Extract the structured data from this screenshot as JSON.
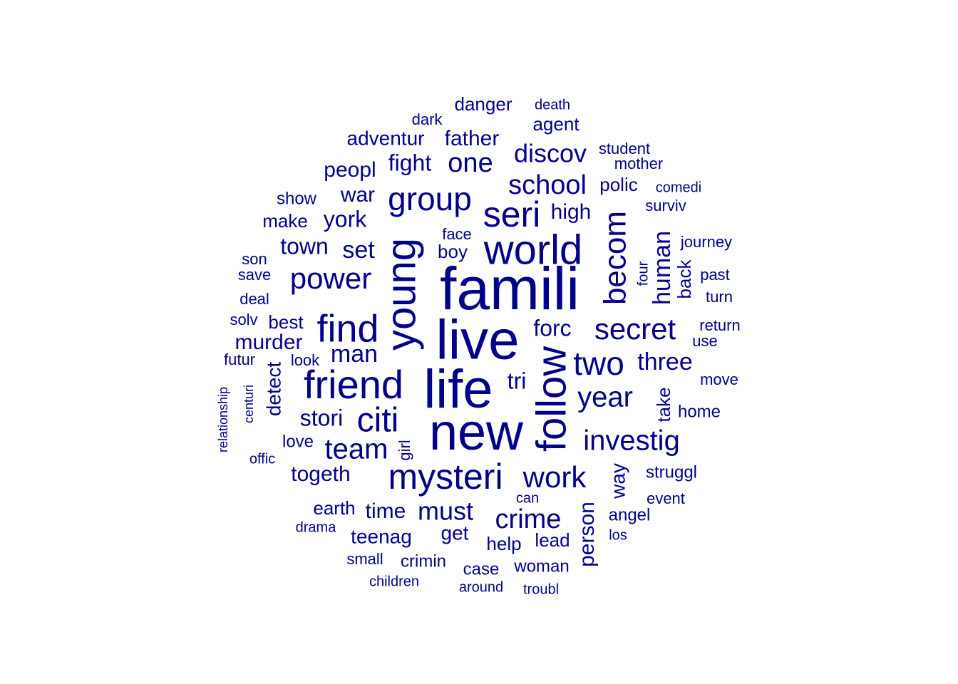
{
  "colors": {
    "background": "#ffffff",
    "word": "#00008b"
  },
  "words": [
    {
      "text": "famili",
      "weight": 84
    },
    {
      "text": "live",
      "weight": 78
    },
    {
      "text": "life",
      "weight": 76
    },
    {
      "text": "new",
      "weight": 72
    },
    {
      "text": "young",
      "weight": 58
    },
    {
      "text": "follow",
      "weight": 58
    },
    {
      "text": "world",
      "weight": 58
    },
    {
      "text": "friend",
      "weight": 56
    },
    {
      "text": "find",
      "weight": 54
    },
    {
      "text": "seri",
      "weight": 50
    },
    {
      "text": "mysteri",
      "weight": 50
    },
    {
      "text": "citi",
      "weight": 48
    },
    {
      "text": "group",
      "weight": 46
    },
    {
      "text": "two",
      "weight": 46
    },
    {
      "text": "becom",
      "weight": 44
    },
    {
      "text": "secret",
      "weight": 42
    },
    {
      "text": "power",
      "weight": 42
    },
    {
      "text": "work",
      "weight": 42
    },
    {
      "text": "year",
      "weight": 40
    },
    {
      "text": "team",
      "weight": 40
    },
    {
      "text": "investig",
      "weight": 40
    },
    {
      "text": "crime",
      "weight": 38
    },
    {
      "text": "school",
      "weight": 38
    },
    {
      "text": "one",
      "weight": 38
    },
    {
      "text": "discov",
      "weight": 36
    },
    {
      "text": "must",
      "weight": 36
    },
    {
      "text": "man",
      "weight": 34
    },
    {
      "text": "human",
      "weight": 34
    },
    {
      "text": "three",
      "weight": 34
    },
    {
      "text": "set",
      "weight": 34
    },
    {
      "text": "fight",
      "weight": 32
    },
    {
      "text": "forc",
      "weight": 32
    },
    {
      "text": "york",
      "weight": 32
    },
    {
      "text": "stori",
      "weight": 32
    },
    {
      "text": "town",
      "weight": 32
    },
    {
      "text": "tri",
      "weight": 32
    },
    {
      "text": "murder",
      "weight": 30
    },
    {
      "text": "father",
      "weight": 30
    },
    {
      "text": "peopl",
      "weight": 30
    },
    {
      "text": "high",
      "weight": 30
    },
    {
      "text": "togeth",
      "weight": 30
    },
    {
      "text": "person",
      "weight": 30
    },
    {
      "text": "war",
      "weight": 30
    },
    {
      "text": "time",
      "weight": 30
    },
    {
      "text": "detect",
      "weight": 28
    },
    {
      "text": "get",
      "weight": 28
    },
    {
      "text": "way",
      "weight": 28
    },
    {
      "text": "teenag",
      "weight": 28
    },
    {
      "text": "adventur",
      "weight": 28
    },
    {
      "text": "danger",
      "weight": 26
    },
    {
      "text": "agent",
      "weight": 26
    },
    {
      "text": "take",
      "weight": 26
    },
    {
      "text": "back",
      "weight": 26
    },
    {
      "text": "polic",
      "weight": 26
    },
    {
      "text": "help",
      "weight": 26
    },
    {
      "text": "lead",
      "weight": 26
    },
    {
      "text": "earth",
      "weight": 26
    },
    {
      "text": "boy",
      "weight": 26
    },
    {
      "text": "best",
      "weight": 26
    },
    {
      "text": "make",
      "weight": 26
    },
    {
      "text": "angel",
      "weight": 24
    },
    {
      "text": "woman",
      "weight": 24
    },
    {
      "text": "struggl",
      "weight": 24
    },
    {
      "text": "case",
      "weight": 24
    },
    {
      "text": "crimin",
      "weight": 24
    },
    {
      "text": "home",
      "weight": 24
    },
    {
      "text": "show",
      "weight": 24
    },
    {
      "text": "love",
      "weight": 24
    },
    {
      "text": "mother",
      "weight": 22
    },
    {
      "text": "face",
      "weight": 22
    },
    {
      "text": "return",
      "weight": 22
    },
    {
      "text": "move",
      "weight": 22
    },
    {
      "text": "journey",
      "weight": 22
    },
    {
      "text": "surviv",
      "weight": 22
    },
    {
      "text": "small",
      "weight": 22
    },
    {
      "text": "deal",
      "weight": 22
    },
    {
      "text": "save",
      "weight": 22
    },
    {
      "text": "student",
      "weight": 22
    },
    {
      "text": "dark",
      "weight": 22
    },
    {
      "text": "event",
      "weight": 22
    },
    {
      "text": "futur",
      "weight": 22
    },
    {
      "text": "solv",
      "weight": 22
    },
    {
      "text": "past",
      "weight": 22
    },
    {
      "text": "turn",
      "weight": 22
    },
    {
      "text": "look",
      "weight": 22
    },
    {
      "text": "use",
      "weight": 22
    },
    {
      "text": "son",
      "weight": 22
    },
    {
      "text": "girl",
      "weight": 22
    },
    {
      "text": "comedi",
      "weight": 20
    },
    {
      "text": "death",
      "weight": 20
    },
    {
      "text": "around",
      "weight": 20
    },
    {
      "text": "troubl",
      "weight": 20
    },
    {
      "text": "children",
      "weight": 20
    },
    {
      "text": "drama",
      "weight": 20
    },
    {
      "text": "los",
      "weight": 20
    },
    {
      "text": "can",
      "weight": 20
    },
    {
      "text": "offic",
      "weight": 20
    },
    {
      "text": "four",
      "weight": 20
    },
    {
      "text": "centuri",
      "weight": 18
    },
    {
      "text": "relationship",
      "weight": 18
    }
  ]
}
